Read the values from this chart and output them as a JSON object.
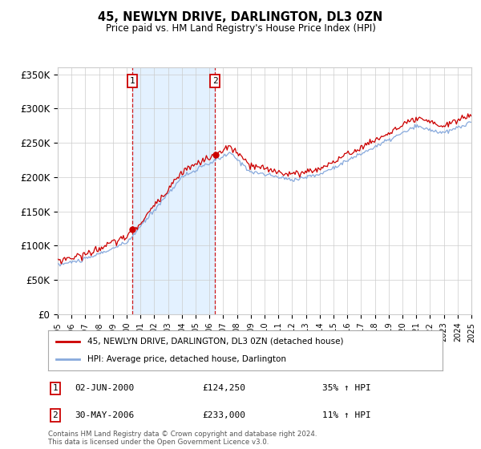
{
  "title": "45, NEWLYN DRIVE, DARLINGTON, DL3 0ZN",
  "subtitle": "Price paid vs. HM Land Registry's House Price Index (HPI)",
  "ylim": [
    0,
    360000
  ],
  "yticks": [
    0,
    50000,
    100000,
    150000,
    200000,
    250000,
    300000,
    350000
  ],
  "ytick_labels": [
    "£0",
    "£50K",
    "£100K",
    "£150K",
    "£200K",
    "£250K",
    "£300K",
    "£350K"
  ],
  "line1_color": "#cc0000",
  "line2_color": "#88aadd",
  "line1_label": "45, NEWLYN DRIVE, DARLINGTON, DL3 0ZN (detached house)",
  "line2_label": "HPI: Average price, detached house, Darlington",
  "transaction1_date": "02-JUN-2000",
  "transaction1_price": "£124,250",
  "transaction1_info": "35% ↑ HPI",
  "transaction2_date": "30-MAY-2006",
  "transaction2_price": "£233,000",
  "transaction2_info": "11% ↑ HPI",
  "vline1_x": 2000.42,
  "vline2_x": 2006.41,
  "footnote1": "Contains HM Land Registry data © Crown copyright and database right 2024.",
  "footnote2": "This data is licensed under the Open Government Licence v3.0.",
  "background_color": "#ffffff",
  "shade_color": "#ddeeff",
  "grid_color": "#cccccc",
  "xlim": [
    1995,
    2025
  ]
}
